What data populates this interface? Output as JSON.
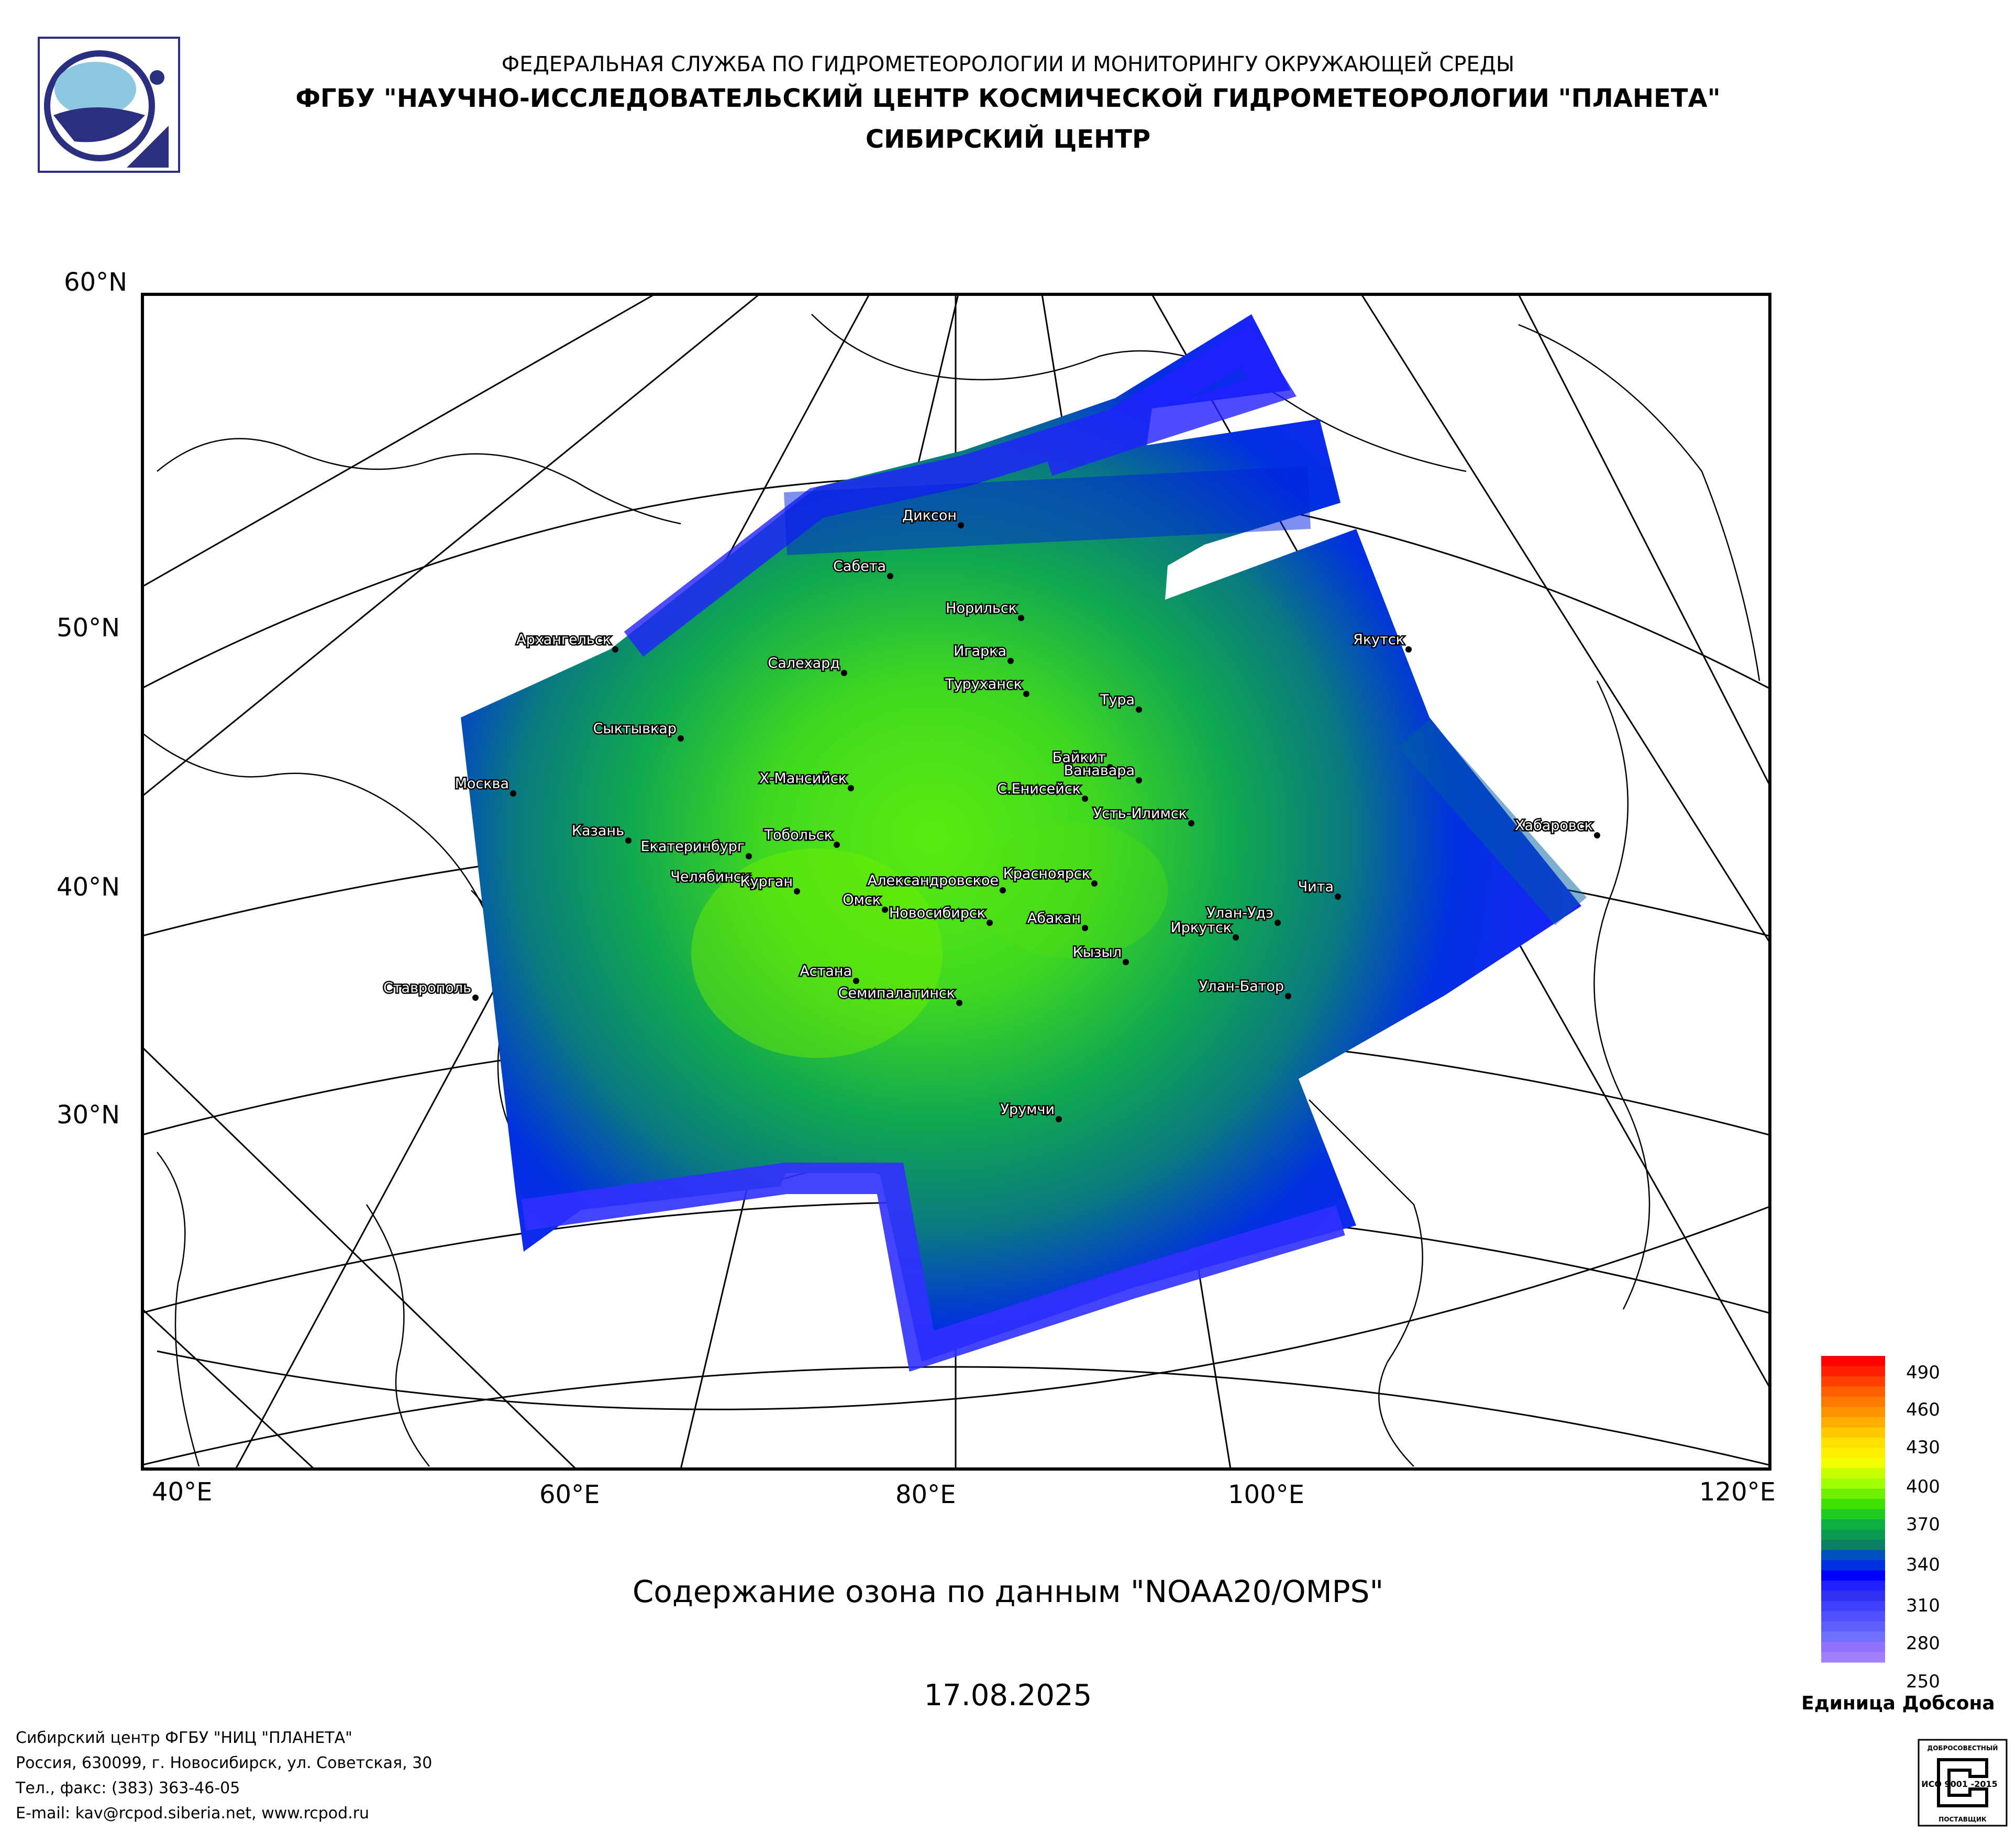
{
  "header": {
    "line1": "ФЕДЕРАЛЬНАЯ СЛУЖБА ПО ГИДРОМЕТЕОРОЛОГИИ И МОНИТОРИНГУ ОКРУЖАЮЩЕЙ СРЕДЫ",
    "line2": "ФГБУ \"НАУЧНО-ИССЛЕДОВАТЕЛЬСКИЙ ЦЕНТР КОСМИЧЕСКОЙ ГИДРОМЕТЕОРОЛОГИИ \"ПЛАНЕТА\"",
    "line3": "СИБИРСКИЙ ЦЕНТР"
  },
  "map": {
    "lat_labels": [
      "60°N",
      "50°N",
      "40°N",
      "30°N"
    ],
    "lon_labels": [
      "40°E",
      "60°E",
      "80°E",
      "100°E",
      "120°E"
    ],
    "cities": [
      {
        "name": "Диксон"
      },
      {
        "name": "Сабета"
      },
      {
        "name": "Норильск"
      },
      {
        "name": "Архангельск"
      },
      {
        "name": "Игарка"
      },
      {
        "name": "Якутск"
      },
      {
        "name": "Салехард"
      },
      {
        "name": "Туруханск"
      },
      {
        "name": "Тура"
      },
      {
        "name": "Сыктывкар"
      },
      {
        "name": "Байкит"
      },
      {
        "name": "Ванавара"
      },
      {
        "name": "Москва"
      },
      {
        "name": "Х-Мансийск"
      },
      {
        "name": "С.Енисейск"
      },
      {
        "name": "Усть-Илимск"
      },
      {
        "name": "Хабаровск"
      },
      {
        "name": "Казань"
      },
      {
        "name": "Тобольск"
      },
      {
        "name": "Екатеринбург"
      },
      {
        "name": "Красноярск"
      },
      {
        "name": "Челябинск"
      },
      {
        "name": "Александровское"
      },
      {
        "name": "Чита"
      },
      {
        "name": "Курган"
      },
      {
        "name": "Омск"
      },
      {
        "name": "Улан-Удэ"
      },
      {
        "name": "Новосибирск"
      },
      {
        "name": "Абакан"
      },
      {
        "name": "Иркутск"
      },
      {
        "name": "Кызыл"
      },
      {
        "name": "Астана"
      },
      {
        "name": "Ставрополь"
      },
      {
        "name": "Семипалатинск"
      },
      {
        "name": "Улан-Батор"
      },
      {
        "name": "Урумчи"
      }
    ]
  },
  "caption": "Содержание озона по данным \"NOAA20/OMPS\"",
  "date": "17.08.2025",
  "legend": {
    "labels": [
      "490",
      "460",
      "430",
      "400",
      "370",
      "340",
      "310",
      "280",
      "250"
    ],
    "unit": "Единица Добсона",
    "colors": [
      "#ff0000",
      "#ff2000",
      "#ff4000",
      "#ff6000",
      "#ff7a00",
      "#ff9400",
      "#ffae00",
      "#ffc800",
      "#ffe000",
      "#fff000",
      "#f0ff00",
      "#c8ff00",
      "#a0ff00",
      "#70f000",
      "#40e000",
      "#20cc20",
      "#10b040",
      "#0a9a50",
      "#0a8060",
      "#0050c0",
      "#0030e0",
      "#0000ff",
      "#2020ff",
      "#3030f0",
      "#4040ff",
      "#5050ff",
      "#6060ff",
      "#7070ff",
      "#9070ff",
      "#a080ff"
    ]
  },
  "footer": {
    "line1": "Сибирский центр ФГБУ \"НИЦ \"ПЛАНЕТА\"",
    "line2": "Россия, 630099, г. Новосибирск, ул. Советская, 30",
    "line3": "Тел., факс: (383) 363-46-05",
    "line4": "E-mail: kav@rcpod.siberia.net, www.rcpod.ru"
  },
  "iso_badge": {
    "top": "ДОБРОСОВЕСТНЫЙ",
    "main": "ИСО 9001 -2015",
    "bottom": "ПОСТАВЩИК"
  }
}
